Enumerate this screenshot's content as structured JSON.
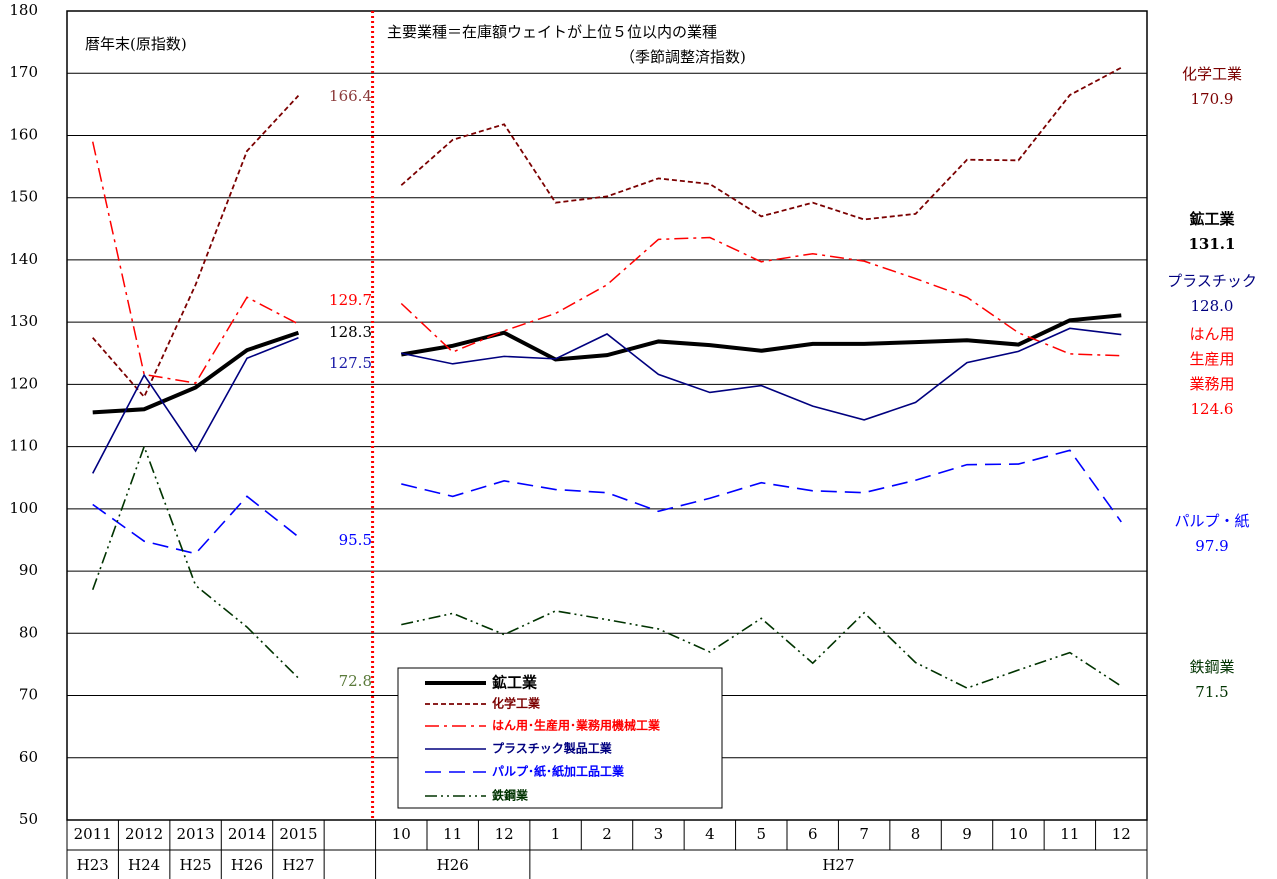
{
  "chart_data": {
    "type": "line",
    "annotations": [
      "暦年末(原指数)",
      "主要業種＝在庫額ウェイトが上位５位以内の業種",
      "（季節調整済指数)"
    ],
    "categories": [
      "2011",
      "2012",
      "2013",
      "2014",
      "2015",
      null,
      "10",
      "11",
      "12",
      "1",
      "2",
      "3",
      "4",
      "5",
      "6",
      "7",
      "8",
      "9",
      "10",
      "11",
      "12"
    ],
    "sub_categories": [
      "H23",
      "H24",
      "H25",
      "H26",
      "H27",
      null,
      "H26",
      null,
      null,
      "H27",
      null,
      null,
      null,
      null,
      null,
      null,
      null,
      null,
      null,
      null,
      null
    ],
    "ylim": [
      50,
      180
    ],
    "yticks": [
      50,
      60,
      70,
      80,
      90,
      100,
      110,
      120,
      130,
      140,
      150,
      160,
      170,
      180
    ],
    "grid": true,
    "series": [
      {
        "name": "鉱工業",
        "end_label": [
          "鉱工業"
        ],
        "color": "#000000",
        "style": "thick",
        "values": [
          115.5,
          116,
          119.5,
          125.5,
          128.3,
          null,
          124.8,
          126.2,
          128.3,
          124.0,
          124.7,
          126.9,
          126.3,
          125.4,
          126.5,
          126.5,
          126.8,
          127.1,
          126.4,
          130.3,
          131.1
        ],
        "value_labels": [
          null,
          null,
          null,
          null,
          "128.3",
          null,
          null,
          null,
          null,
          null,
          null,
          null,
          null,
          null,
          null,
          null,
          null,
          null,
          null,
          null,
          "131.1"
        ]
      },
      {
        "name": "化学工業",
        "end_label": [
          "化学工業"
        ],
        "color": "#7b0000",
        "style": "dashed",
        "values": [
          127.5,
          118,
          136,
          157.5,
          166.4,
          null,
          152,
          159.3,
          161.8,
          149.2,
          150.2,
          153.1,
          152.2,
          147,
          149.2,
          146.5,
          147.4,
          156.1,
          156,
          166.5,
          170.9
        ],
        "value_labels": [
          null,
          null,
          null,
          null,
          "166.4",
          null,
          null,
          null,
          null,
          null,
          null,
          null,
          null,
          null,
          null,
          null,
          null,
          null,
          null,
          null,
          "170.9"
        ]
      },
      {
        "name": "はん用･生産用･業務用機械工業",
        "end_label": [
          "はん用",
          "生産用",
          "業務用"
        ],
        "color": "#ff0000",
        "style": "dash-dot",
        "values": [
          159,
          121.6,
          120.2,
          134,
          129.7,
          null,
          133,
          125.2,
          128.6,
          131.4,
          136,
          143.3,
          143.6,
          139.7,
          141,
          139.8,
          137,
          134,
          128.3,
          124.9,
          124.6
        ],
        "value_labels": [
          null,
          null,
          null,
          null,
          "129.7",
          null,
          null,
          null,
          null,
          null,
          null,
          null,
          null,
          null,
          null,
          null,
          null,
          null,
          null,
          null,
          "124.6"
        ]
      },
      {
        "name": "プラスチック製品工業",
        "end_label": [
          "プラスチック"
        ],
        "color": "#00007f",
        "style": "solid",
        "values": [
          105.7,
          121.5,
          109.3,
          124.2,
          127.5,
          null,
          125,
          123.3,
          124.5,
          124.1,
          128.1,
          121.6,
          118.7,
          119.8,
          116.5,
          114.3,
          117.1,
          123.5,
          125.3,
          129,
          128.0
        ],
        "value_labels": [
          null,
          null,
          null,
          null,
          "127.5",
          null,
          null,
          null,
          null,
          null,
          null,
          null,
          null,
          null,
          null,
          null,
          null,
          null,
          null,
          null,
          "128.0"
        ]
      },
      {
        "name": "パルプ･紙･紙加工品工業",
        "end_label": [
          "パルプ・紙"
        ],
        "color": "#0000ff",
        "style": "long-dash",
        "values": [
          100.7,
          94.8,
          92.8,
          102,
          95.5,
          null,
          104,
          102,
          104.5,
          103.1,
          102.6,
          99.6,
          101.7,
          104.2,
          102.9,
          102.6,
          104.6,
          107.1,
          107.2,
          109.4,
          97.9
        ],
        "value_labels": [
          null,
          null,
          null,
          null,
          "95.5",
          null,
          null,
          null,
          null,
          null,
          null,
          null,
          null,
          null,
          null,
          null,
          null,
          null,
          null,
          null,
          "97.9"
        ]
      },
      {
        "name": "鉄鋼業",
        "end_label": [
          "鉄鋼業"
        ],
        "color": "#003300",
        "style": "dash-dot-dot",
        "values": [
          87,
          110,
          87.7,
          81,
          72.8,
          null,
          81.4,
          83.2,
          79.8,
          83.6,
          82.2,
          80.7,
          77,
          82.4,
          75.2,
          83.3,
          75.3,
          71.2,
          74.1,
          76.9,
          71.5
        ],
        "value_labels": [
          null,
          null,
          null,
          null,
          "72.8",
          null,
          null,
          null,
          null,
          null,
          null,
          null,
          null,
          null,
          null,
          null,
          null,
          null,
          null,
          null,
          "71.5"
        ]
      }
    ]
  }
}
